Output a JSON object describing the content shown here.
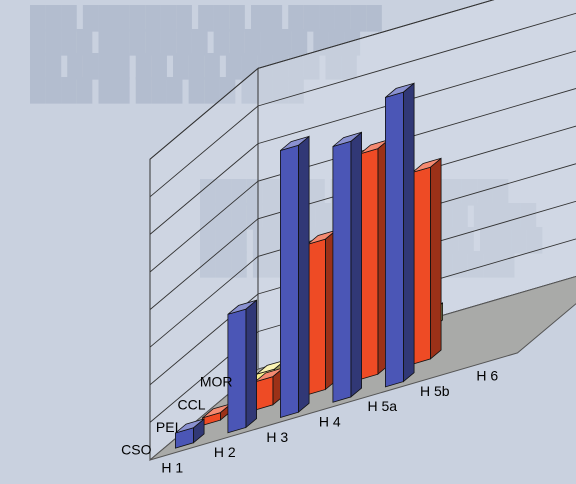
{
  "colors": {
    "background": "#c9d1df",
    "floor": "#a9aaa8",
    "CSO": "#4b56b6",
    "PEI": "#ee4b25",
    "CCL": "#f3a51c",
    "MOR": "#f8ec8c"
  },
  "chart_data": {
    "type": "bar3d",
    "categories": [
      "H 1",
      "H 2",
      "H 3",
      "H 4",
      "H 5a",
      "H 5b",
      "H 6"
    ],
    "series": [
      {
        "name": "CSO",
        "values": [
          0.8,
          6.3,
          14.2,
          13.6,
          15.4,
          null,
          null
        ]
      },
      {
        "name": "PEI",
        "values": [
          0.4,
          1.5,
          8.0,
          12.0,
          10.2,
          null,
          null
        ]
      },
      {
        "name": "CCL",
        "values": [
          0.3,
          1.6,
          1.8,
          3.8,
          null,
          null,
          null
        ]
      },
      {
        "name": "MOR",
        "values": [
          0.3,
          0.6,
          0.6,
          0.9,
          null,
          null,
          null
        ]
      }
    ],
    "yticks": [
      "0",
      "2",
      "4",
      "6",
      "8",
      "10",
      "12",
      "14",
      "16"
    ],
    "ylim": [
      0,
      16
    ],
    "grid": true
  }
}
